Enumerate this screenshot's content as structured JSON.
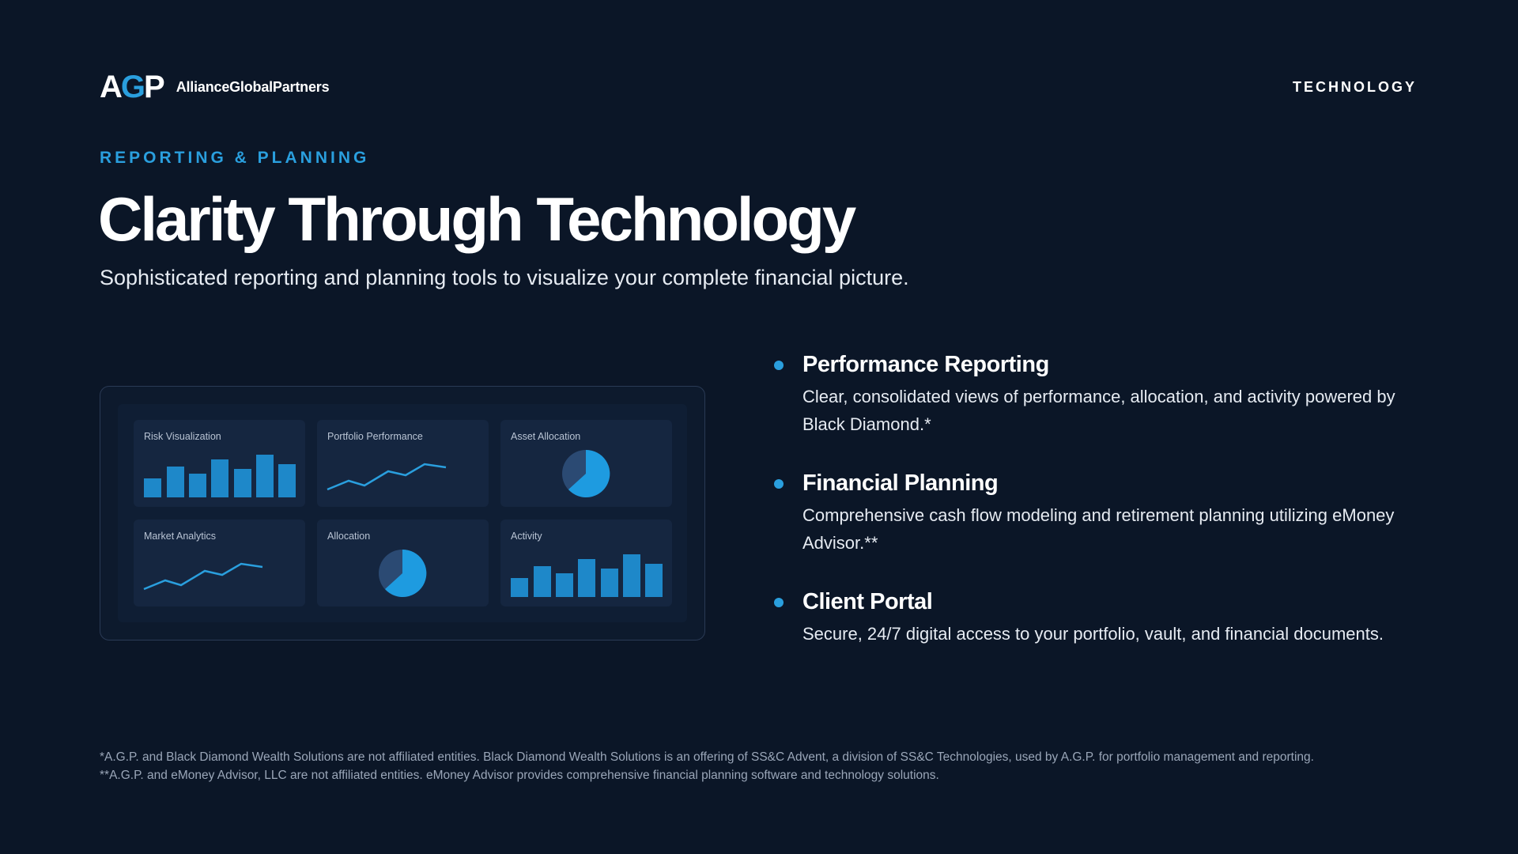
{
  "header": {
    "logo_mark_a": "A",
    "logo_mark_g": "G",
    "logo_mark_p": "P",
    "logo_name": "AllianceGlobalPartners",
    "section": "TECHNOLOGY"
  },
  "hero": {
    "eyebrow": "REPORTING & PLANNING",
    "title": "Clarity Through Technology",
    "subtitle": "Sophisticated reporting and planning tools to visualize your complete financial picture."
  },
  "dashboard": {
    "tiles": [
      {
        "label": "Risk Visualization",
        "kind": "bar"
      },
      {
        "label": "Portfolio Performance",
        "kind": "line"
      },
      {
        "label": "Asset Allocation",
        "kind": "pie"
      },
      {
        "label": "Market Analytics",
        "kind": "line"
      },
      {
        "label": "Allocation",
        "kind": "pie"
      },
      {
        "label": "Activity",
        "kind": "bar"
      }
    ]
  },
  "features": [
    {
      "title": "Performance Reporting",
      "text": "Clear, consolidated views of performance, allocation, and activity powered by Black Diamond.*"
    },
    {
      "title": "Financial Planning",
      "text": "Comprehensive cash flow modeling and retirement planning utilizing eMoney Advisor.**"
    },
    {
      "title": "Client Portal",
      "text": "Secure, 24/7 digital access to your portfolio, vault, and financial documents."
    }
  ],
  "disclaimers": {
    "line1": "*A.G.P. and Black Diamond Wealth Solutions are not affiliated entities. Black Diamond Wealth Solutions is an offering of SS&C Advent, a division of SS&C Technologies, used by A.G.P. for portfolio management and reporting.",
    "line2": "**A.G.P. and eMoney Advisor, LLC are not affiliated entities. eMoney Advisor provides comprehensive financial planning software and technology solutions."
  },
  "colors": {
    "background": "#0b1627",
    "accent": "#2a9fde",
    "tile": "#152640",
    "pie_dark": "#2b4a73"
  }
}
